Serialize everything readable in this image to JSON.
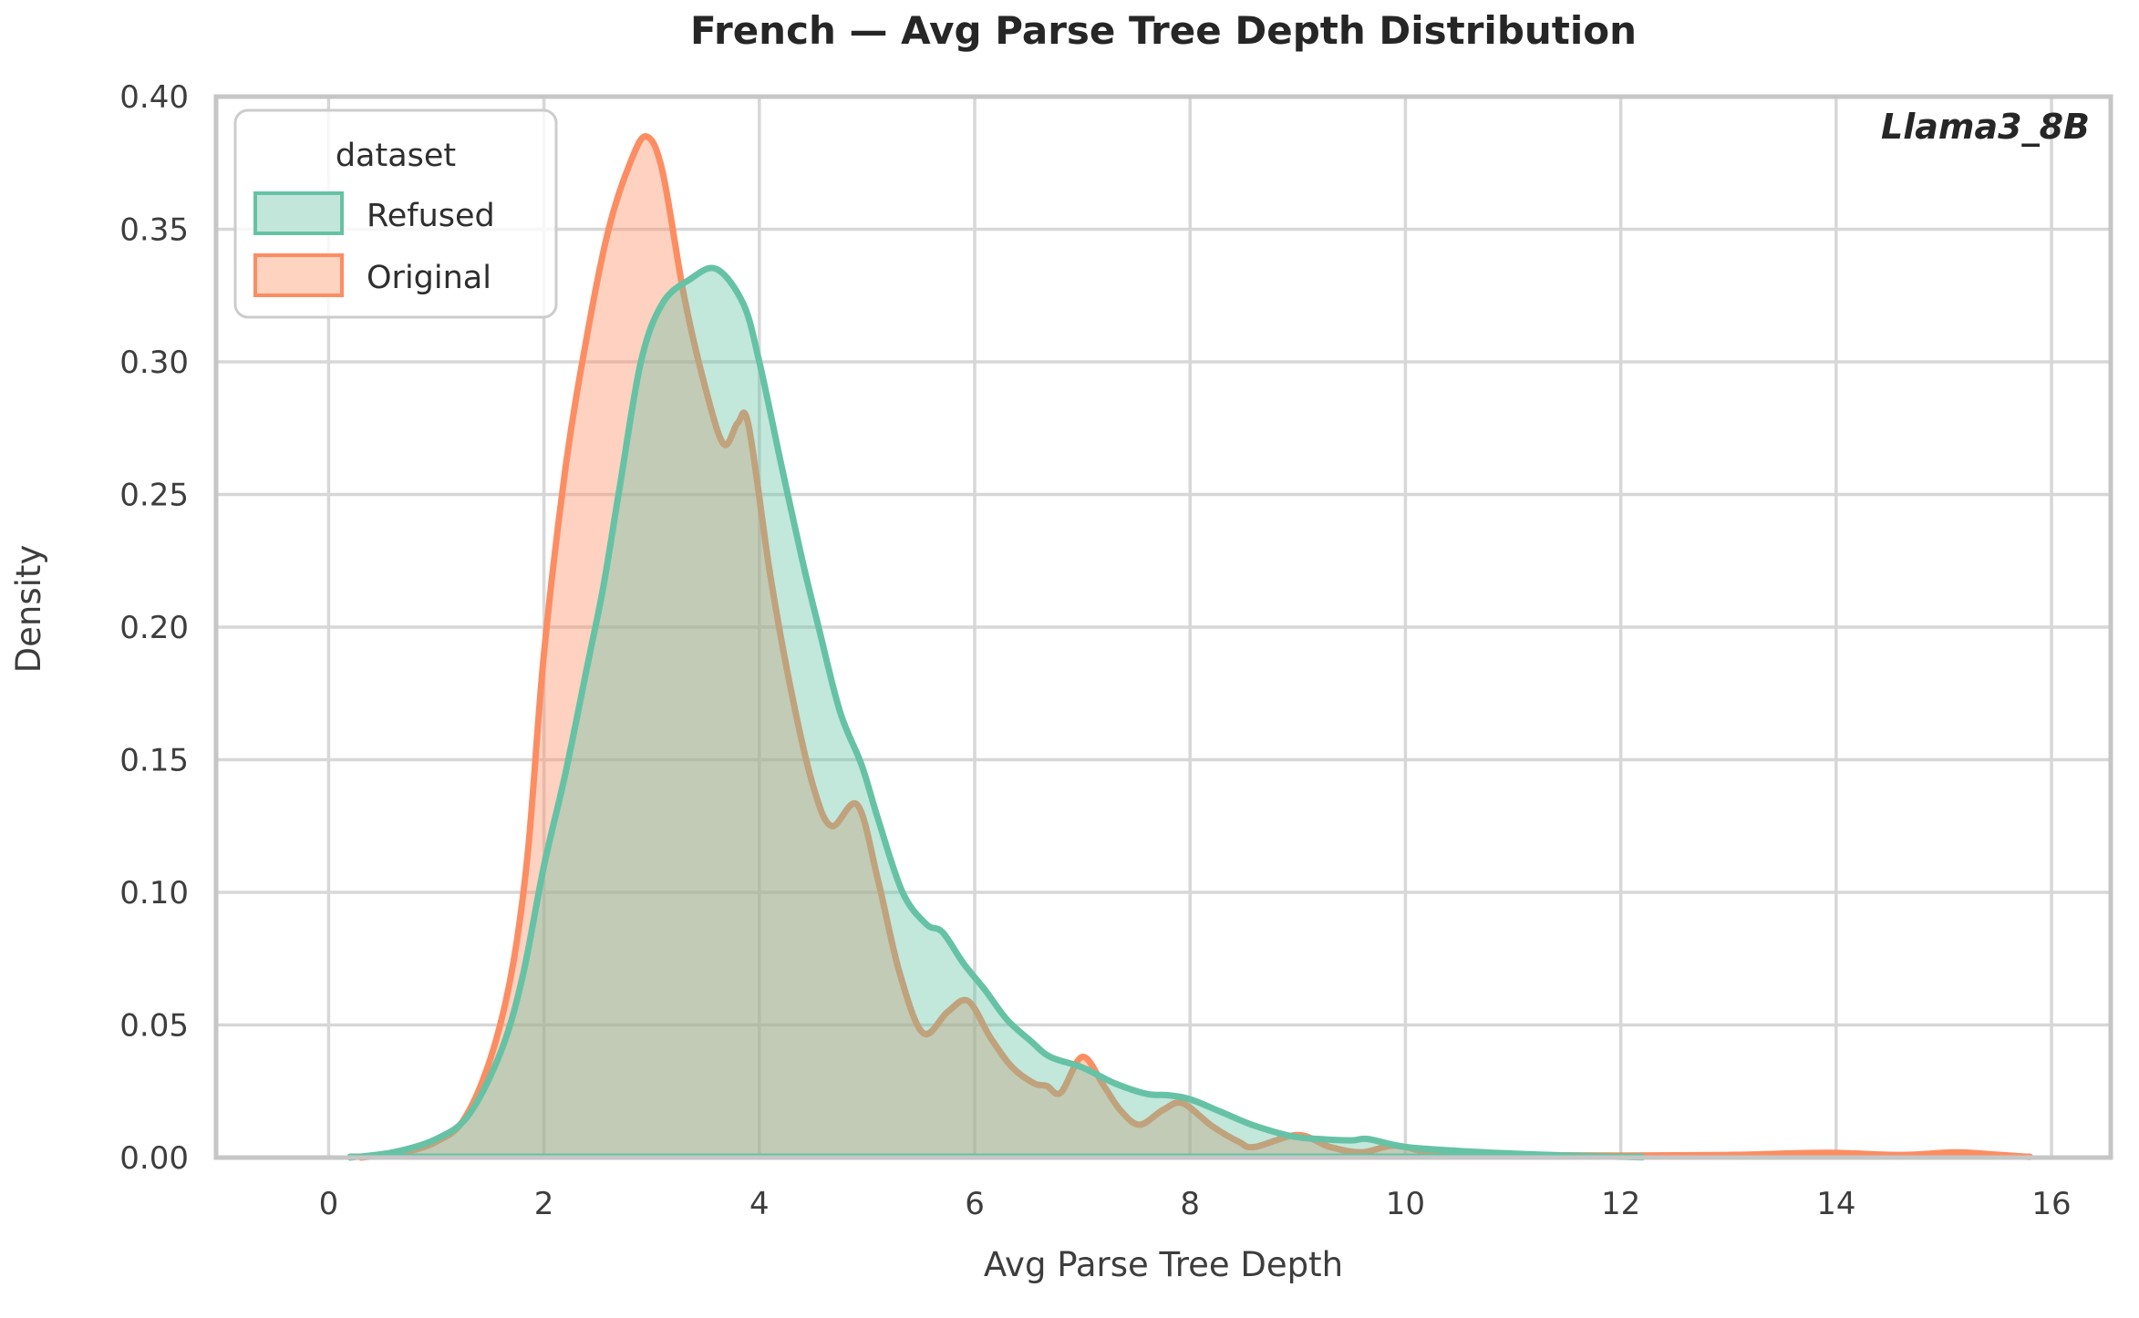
{
  "title": "French — Avg Parse Tree Depth Distribution",
  "annotation": "Llama3_8B",
  "legend": {
    "title": "dataset",
    "entries": [
      {
        "label": "Refused",
        "color": "#66c2a5",
        "fill": "#c2e6da"
      },
      {
        "label": "Original",
        "color": "#fc8d62",
        "fill": "#fed3c0"
      }
    ]
  },
  "colors": {
    "grid": "#d7d7d7",
    "spine": "#c6c6c6",
    "background": "#ffffff",
    "refused_line": "#66c2a5",
    "original_line": "#fc8d62"
  },
  "chart_data": {
    "type": "area",
    "subtype": "kde-density",
    "title": "French — Avg Parse Tree Depth Distribution",
    "xlabel": "Avg Parse Tree Depth",
    "ylabel": "Density",
    "xlim": [
      -1.045,
      16.55
    ],
    "ylim": [
      0,
      0.4
    ],
    "x_ticks": [
      0,
      2,
      4,
      6,
      8,
      10,
      12,
      14,
      16
    ],
    "y_ticks": [
      0.0,
      0.05,
      0.1,
      0.15,
      0.2,
      0.25,
      0.3,
      0.35,
      0.4
    ],
    "grid": true,
    "legend_position": "upper left",
    "annotation": "Llama3_8B",
    "series": [
      {
        "name": "Original",
        "color": "#fc8d62",
        "fill_alpha": 0.4,
        "peak": {
          "x": 2.95,
          "density": 0.385
        },
        "points": [
          [
            0.3,
            0.0
          ],
          [
            0.7,
            0.002
          ],
          [
            1.0,
            0.006
          ],
          [
            1.25,
            0.014
          ],
          [
            1.5,
            0.037
          ],
          [
            1.7,
            0.07
          ],
          [
            1.85,
            0.115
          ],
          [
            2.0,
            0.19
          ],
          [
            2.2,
            0.26
          ],
          [
            2.4,
            0.31
          ],
          [
            2.6,
            0.35
          ],
          [
            2.8,
            0.375
          ],
          [
            2.95,
            0.385
          ],
          [
            3.1,
            0.372
          ],
          [
            3.3,
            0.325
          ],
          [
            3.5,
            0.29
          ],
          [
            3.67,
            0.269
          ],
          [
            3.8,
            0.277
          ],
          [
            3.9,
            0.276
          ],
          [
            4.1,
            0.22
          ],
          [
            4.3,
            0.175
          ],
          [
            4.5,
            0.14
          ],
          [
            4.67,
            0.125
          ],
          [
            4.91,
            0.133
          ],
          [
            5.1,
            0.105
          ],
          [
            5.3,
            0.07
          ],
          [
            5.52,
            0.047
          ],
          [
            5.75,
            0.055
          ],
          [
            5.94,
            0.059
          ],
          [
            6.15,
            0.045
          ],
          [
            6.35,
            0.034
          ],
          [
            6.55,
            0.028
          ],
          [
            6.67,
            0.027
          ],
          [
            6.8,
            0.0245
          ],
          [
            7.0,
            0.038
          ],
          [
            7.2,
            0.027
          ],
          [
            7.35,
            0.018
          ],
          [
            7.53,
            0.0124
          ],
          [
            7.75,
            0.018
          ],
          [
            7.93,
            0.0205
          ],
          [
            8.2,
            0.012
          ],
          [
            8.45,
            0.006
          ],
          [
            8.6,
            0.004
          ],
          [
            9.0,
            0.0085
          ],
          [
            9.3,
            0.004
          ],
          [
            9.6,
            0.002
          ],
          [
            9.9,
            0.0045
          ],
          [
            10.3,
            0.0015
          ],
          [
            11.0,
            0.001
          ],
          [
            12.0,
            0.0008
          ],
          [
            13.0,
            0.001
          ],
          [
            13.9,
            0.0018
          ],
          [
            14.6,
            0.001
          ],
          [
            15.1,
            0.002
          ],
          [
            15.45,
            0.0012
          ],
          [
            15.8,
            0.0002
          ]
        ]
      },
      {
        "name": "Refused",
        "color": "#66c2a5",
        "fill_alpha": 0.4,
        "peak": {
          "x": 3.6,
          "density": 0.335
        },
        "points": [
          [
            0.2,
            0.0
          ],
          [
            0.6,
            0.002
          ],
          [
            1.0,
            0.007
          ],
          [
            1.3,
            0.016
          ],
          [
            1.6,
            0.04
          ],
          [
            1.8,
            0.068
          ],
          [
            2.0,
            0.11
          ],
          [
            2.2,
            0.145
          ],
          [
            2.4,
            0.185
          ],
          [
            2.55,
            0.215
          ],
          [
            2.7,
            0.252
          ],
          [
            2.9,
            0.3
          ],
          [
            3.1,
            0.322
          ],
          [
            3.35,
            0.331
          ],
          [
            3.6,
            0.335
          ],
          [
            3.85,
            0.322
          ],
          [
            4.0,
            0.3
          ],
          [
            4.2,
            0.262
          ],
          [
            4.4,
            0.225
          ],
          [
            4.55,
            0.2
          ],
          [
            4.75,
            0.168
          ],
          [
            4.95,
            0.148
          ],
          [
            5.1,
            0.128
          ],
          [
            5.33,
            0.1
          ],
          [
            5.55,
            0.088
          ],
          [
            5.7,
            0.085
          ],
          [
            5.9,
            0.073
          ],
          [
            6.1,
            0.063
          ],
          [
            6.3,
            0.052
          ],
          [
            6.52,
            0.044
          ],
          [
            6.7,
            0.038
          ],
          [
            7.0,
            0.034
          ],
          [
            7.3,
            0.028
          ],
          [
            7.6,
            0.024
          ],
          [
            7.8,
            0.0235
          ],
          [
            8.0,
            0.022
          ],
          [
            8.3,
            0.017
          ],
          [
            8.6,
            0.012
          ],
          [
            8.95,
            0.008
          ],
          [
            9.2,
            0.007
          ],
          [
            9.5,
            0.0065
          ],
          [
            9.65,
            0.007
          ],
          [
            10.0,
            0.004
          ],
          [
            10.5,
            0.0025
          ],
          [
            11.0,
            0.0015
          ],
          [
            11.5,
            0.0008
          ],
          [
            12.2,
            0.0001
          ]
        ]
      }
    ]
  }
}
